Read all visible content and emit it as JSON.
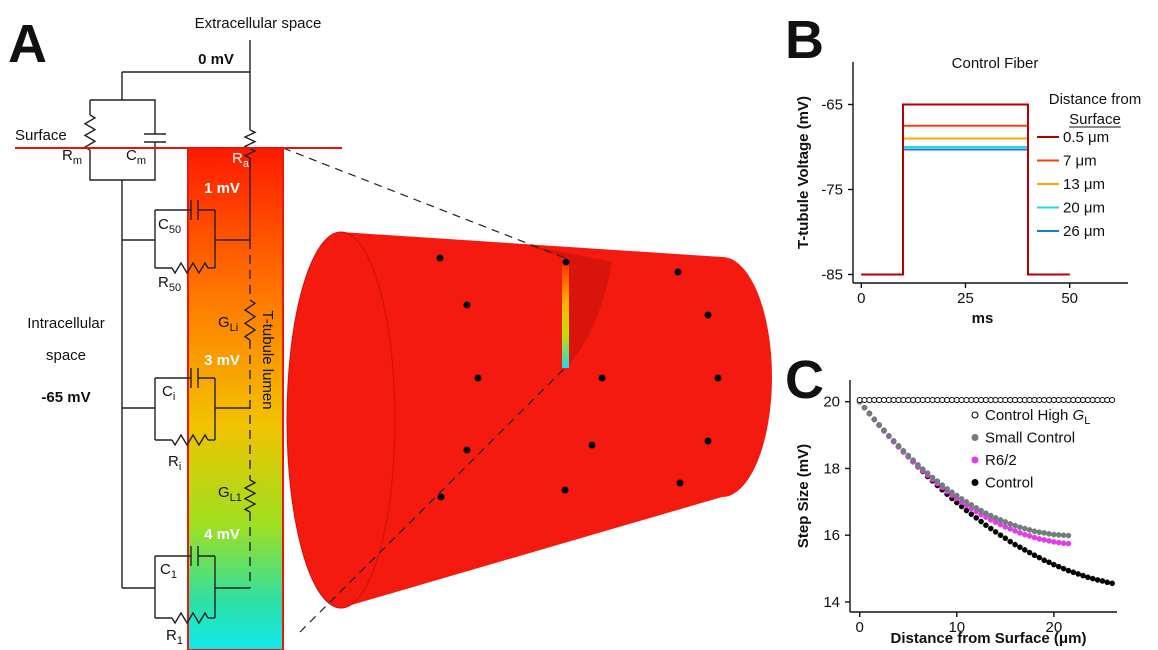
{
  "panel_labels": [
    "A",
    "B",
    "C"
  ],
  "diagram": {
    "extracellular": "Extracellular space",
    "surface_potential": "0 mV",
    "surface": "Surface",
    "intracellular": [
      "Intracellular",
      "space"
    ],
    "intracellular_potential": "-65 mV",
    "lumen": "T-tubule lumen",
    "lumen_potentials": [
      "1 mV",
      "3 mV",
      "4 mV"
    ],
    "components": [
      {
        "symbol": "R",
        "sub": "m"
      },
      {
        "symbol": "C",
        "sub": "m"
      },
      {
        "symbol": "R",
        "sub": "a"
      },
      {
        "symbol": "C",
        "sub": "50"
      },
      {
        "symbol": "R",
        "sub": "50"
      },
      {
        "symbol": "G",
        "sub": "Li"
      },
      {
        "symbol": "C",
        "sub": "i"
      },
      {
        "symbol": "R",
        "sub": "i"
      },
      {
        "symbol": "G",
        "sub": "L1"
      },
      {
        "symbol": "C",
        "sub": "1"
      },
      {
        "symbol": "R",
        "sub": "1"
      }
    ]
  },
  "chart_data": [
    {
      "type": "line",
      "title": "Control Fiber",
      "x_label": "ms",
      "y_label": "T-tubule Voltage (mV)",
      "legend_title": [
        "Distance from",
        "Surface"
      ],
      "legend": "upper right",
      "xlim": [
        -2,
        64
      ],
      "xticks": [
        0,
        25,
        50
      ],
      "ylim": [
        -86,
        -60
      ],
      "yticks": [
        -85,
        -75,
        -65
      ],
      "x": [
        0,
        10,
        10,
        40,
        40,
        50
      ],
      "series": [
        {
          "name": "0.5 μm",
          "color": "#b40000",
          "values": [
            -85,
            -85,
            -65,
            -65,
            -85,
            -85
          ]
        },
        {
          "name": "7 μm",
          "color": "#ff3a10",
          "values": [
            -85,
            -85,
            -67.5,
            -67.5,
            -85,
            -85
          ]
        },
        {
          "name": "13 μm",
          "color": "#ffa800",
          "values": [
            -85,
            -85,
            -69,
            -69,
            -85,
            -85
          ]
        },
        {
          "name": "20 μm",
          "color": "#22d8ea",
          "values": [
            -85,
            -85,
            -70,
            -70,
            -85,
            -85
          ]
        },
        {
          "name": "26 μm",
          "color": "#1a78e0",
          "values": [
            -85,
            -85,
            -70.3,
            -70.3,
            -85,
            -85
          ]
        }
      ]
    },
    {
      "type": "scatter",
      "x_label": "Distance from Surface (μm)",
      "y_label": "Step Size (mV)",
      "legend": "upper right",
      "xlim": [
        -1,
        26.5
      ],
      "xticks": [
        0,
        10,
        20
      ],
      "ylim": [
        13.7,
        20.65
      ],
      "yticks": [
        14,
        16,
        18,
        20
      ],
      "series": [
        {
          "name": "Control High GL",
          "color": "#000000",
          "marker": "open",
          "x": [
            0,
            0.5,
            1,
            1.5,
            2,
            2.5,
            3,
            3.5,
            4,
            4.5,
            5,
            5.5,
            6,
            6.5,
            7,
            7.5,
            8,
            8.5,
            9,
            9.5,
            10,
            10.5,
            11,
            11.5,
            12,
            12.5,
            13,
            13.5,
            14,
            14.5,
            15,
            15.5,
            16,
            16.5,
            17,
            17.5,
            18,
            18.5,
            19,
            19.5,
            20,
            20.5,
            21,
            21.5,
            22,
            22.5,
            23,
            23.5,
            24,
            24.5,
            25,
            25.5,
            26
          ],
          "values": [
            20.05,
            20.05,
            20.05,
            20.05,
            20.05,
            20.05,
            20.05,
            20.05,
            20.05,
            20.05,
            20.05,
            20.05,
            20.05,
            20.05,
            20.05,
            20.05,
            20.05,
            20.05,
            20.05,
            20.05,
            20.05,
            20.05,
            20.05,
            20.05,
            20.05,
            20.05,
            20.05,
            20.05,
            20.05,
            20.05,
            20.05,
            20.05,
            20.05,
            20.05,
            20.05,
            20.05,
            20.05,
            20.05,
            20.05,
            20.05,
            20.05,
            20.05,
            20.05,
            20.05,
            20.05,
            20.05,
            20.05,
            20.05,
            20.05,
            20.05,
            20.05,
            20.05,
            20.05
          ]
        },
        {
          "name": "Small Control",
          "color": "#6f7d7b",
          "marker": "filled",
          "x": [
            0,
            0.5,
            1,
            1.5,
            2,
            2.5,
            3,
            3.5,
            4,
            4.5,
            5,
            5.5,
            6,
            6.5,
            7,
            7.5,
            8,
            8.5,
            9,
            9.5,
            10,
            10.5,
            11,
            11.5,
            12,
            12.5,
            13,
            13.5,
            14,
            14.5,
            15,
            15.5,
            16,
            16.5,
            17,
            17.5,
            18,
            18.5,
            19,
            19.5,
            20,
            20.5,
            21,
            21.5
          ],
          "values": [
            20,
            19.82,
            19.64,
            19.47,
            19.31,
            19.14,
            18.98,
            18.83,
            18.68,
            18.53,
            18.39,
            18.25,
            18.11,
            17.98,
            17.86,
            17.73,
            17.62,
            17.5,
            17.39,
            17.29,
            17.19,
            17.09,
            17.0,
            16.91,
            16.82,
            16.74,
            16.66,
            16.59,
            16.52,
            16.46,
            16.4,
            16.34,
            16.29,
            16.24,
            16.2,
            16.16,
            16.12,
            16.09,
            16.07,
            16.04,
            16.02,
            16.01,
            16.0,
            15.99
          ]
        },
        {
          "name": "R6/2",
          "color": "#e03ce8",
          "marker": "filled",
          "x": [
            0,
            0.5,
            1,
            1.5,
            2,
            2.5,
            3,
            3.5,
            4,
            4.5,
            5,
            5.5,
            6,
            6.5,
            7,
            7.5,
            8,
            8.5,
            9,
            9.5,
            10,
            10.5,
            11,
            11.5,
            12,
            12.5,
            13,
            13.5,
            14,
            14.5,
            15,
            15.5,
            16,
            16.5,
            17,
            17.5,
            18,
            18.5,
            19,
            19.5,
            20,
            20.5,
            21,
            21.5
          ],
          "values": [
            20,
            19.82,
            19.64,
            19.46,
            19.29,
            19.12,
            18.96,
            18.8,
            18.65,
            18.49,
            18.35,
            18.2,
            18.06,
            17.93,
            17.8,
            17.67,
            17.55,
            17.43,
            17.31,
            17.2,
            17.1,
            16.99,
            16.89,
            16.8,
            16.71,
            16.62,
            16.54,
            16.46,
            16.39,
            16.32,
            16.25,
            16.19,
            16.13,
            16.07,
            16.02,
            15.98,
            15.93,
            15.89,
            15.86,
            15.83,
            15.8,
            15.78,
            15.76,
            15.75
          ]
        },
        {
          "name": "Control",
          "color": "#000000",
          "marker": "filled",
          "x": [
            0,
            0.5,
            1,
            1.5,
            2,
            2.5,
            3,
            3.5,
            4,
            4.5,
            5,
            5.5,
            6,
            6.5,
            7,
            7.5,
            8,
            8.5,
            9,
            9.5,
            10,
            10.5,
            11,
            11.5,
            12,
            12.5,
            13,
            13.5,
            14,
            14.5,
            15,
            15.5,
            16,
            16.5,
            17,
            17.5,
            18,
            18.5,
            19,
            19.5,
            20,
            20.5,
            21,
            21.5,
            22,
            22.5,
            23,
            23.5,
            24,
            24.5,
            25,
            25.5,
            26
          ],
          "values": [
            20,
            19.82,
            19.65,
            19.47,
            19.3,
            19.14,
            18.97,
            18.81,
            18.65,
            18.5,
            18.35,
            18.2,
            18.05,
            17.91,
            17.76,
            17.63,
            17.49,
            17.36,
            17.23,
            17.1,
            16.98,
            16.86,
            16.74,
            16.63,
            16.52,
            16.41,
            16.3,
            16.2,
            16.1,
            16.0,
            15.91,
            15.81,
            15.72,
            15.64,
            15.56,
            15.48,
            15.4,
            15.33,
            15.25,
            15.19,
            15.12,
            15.06,
            15.0,
            14.94,
            14.89,
            14.84,
            14.79,
            14.74,
            14.7,
            14.66,
            14.63,
            14.59,
            14.56
          ]
        }
      ]
    }
  ]
}
